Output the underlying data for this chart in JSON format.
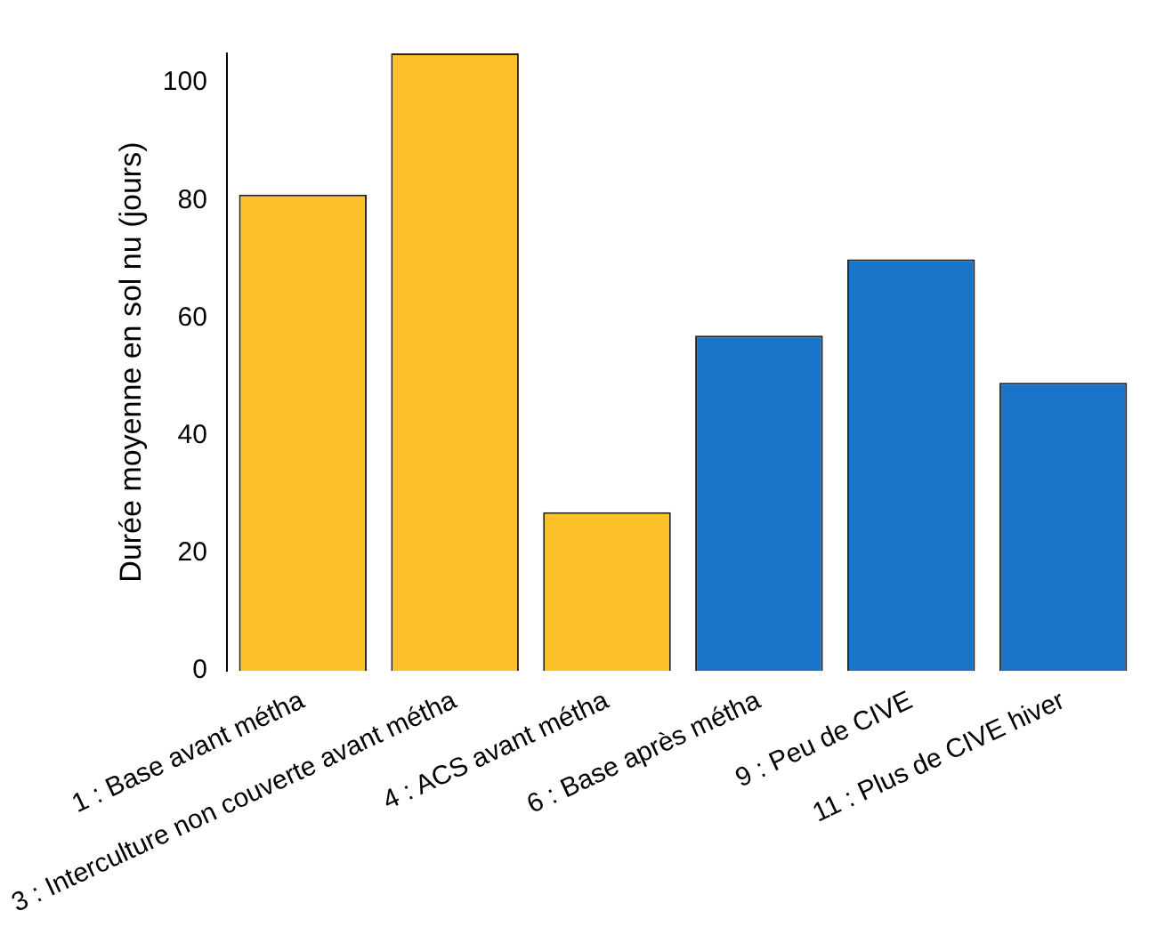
{
  "chart_data": {
    "type": "bar",
    "ylabel": "Durée moyenne en sol nu (jours)",
    "categories": [
      "1 : Base avant métha",
      "3 : Interculture non couverte avant métha",
      "4 : ACS avant métha",
      "6 : Base après métha",
      "9 : Peu de CIVE",
      "11 : Plus de CIVE hiver"
    ],
    "values": [
      81,
      105,
      27,
      57,
      70,
      49
    ],
    "colors": [
      "#fcc12a",
      "#fcc12a",
      "#fcc12a",
      "#1a74c9",
      "#1a74c9",
      "#1a74c9"
    ],
    "ylim": [
      0,
      105
    ],
    "yticks": [
      0,
      20,
      40,
      60,
      80,
      100
    ],
    "grid": false,
    "legend": false
  }
}
